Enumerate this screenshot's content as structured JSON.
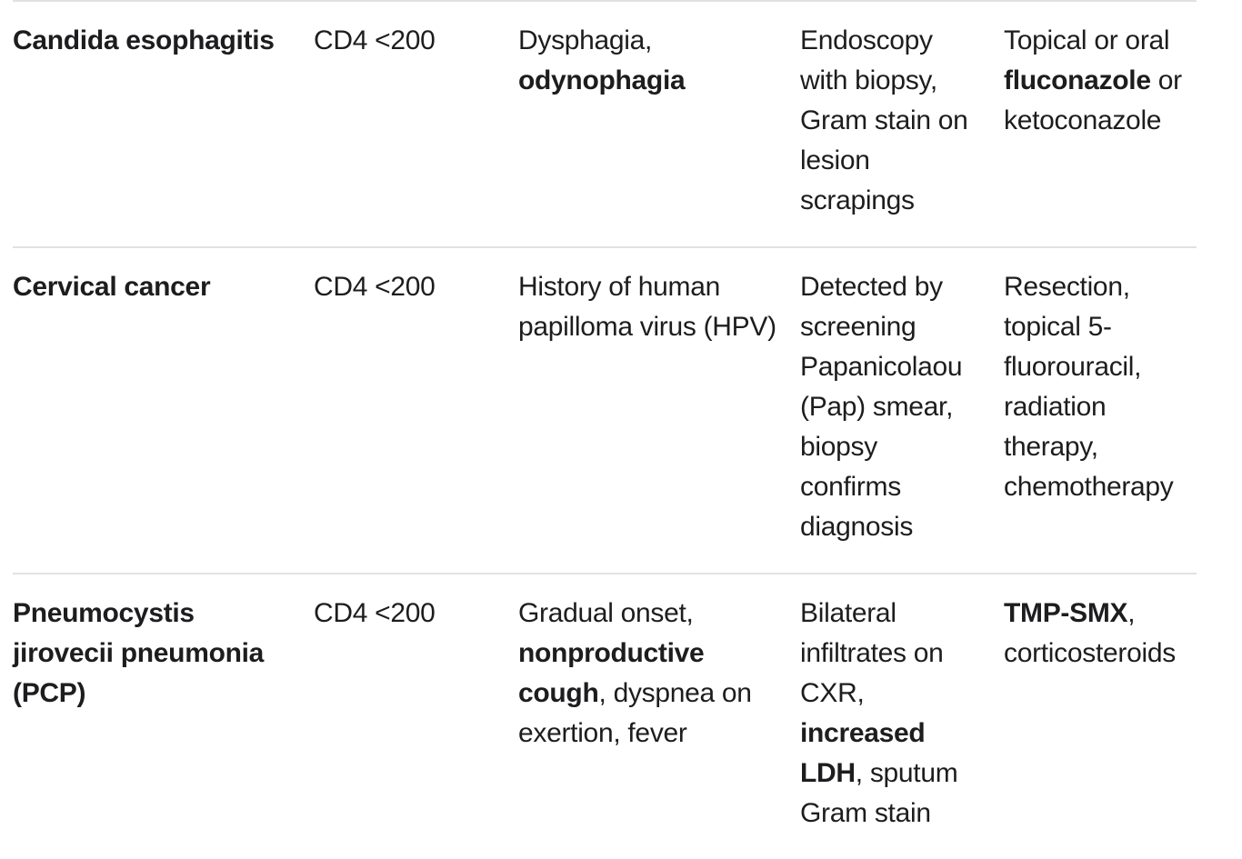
{
  "colors": {
    "text": "#1d1d1f",
    "divider": "#e1e1e5",
    "background": "#ffffff"
  },
  "table": {
    "rows": [
      {
        "cells": [
          [
            {
              "t": "Candida esophagitis",
              "b": true
            }
          ],
          [
            {
              "t": "CD4 <200"
            }
          ],
          [
            {
              "t": "Dysphagia,\n"
            },
            {
              "t": "odynophagia",
              "b": true
            }
          ],
          [
            {
              "t": "Endoscopy\nwith biopsy,\nGram stain on\nlesion\nscrapings"
            }
          ],
          [
            {
              "t": "Topical or oral\n"
            },
            {
              "t": "fluconazole",
              "b": true
            },
            {
              "t": " or\nketoconazole"
            }
          ]
        ]
      },
      {
        "cells": [
          [
            {
              "t": "Cervical cancer",
              "b": true
            }
          ],
          [
            {
              "t": "CD4 <200"
            }
          ],
          [
            {
              "t": "History of human\npapilloma virus (HPV)"
            }
          ],
          [
            {
              "t": "Detected by\nscreening\nPapanicolaou\n(Pap) smear,\nbiopsy\nconfirms\ndiagnosis"
            }
          ],
          [
            {
              "t": "Resection,\ntopical 5-\nfluorouracil,\nradiation\ntherapy,\nchemotherapy"
            }
          ]
        ]
      },
      {
        "cells": [
          [
            {
              "t": "Pneumocystis\njirovecii pneumonia\n(PCP)",
              "b": true
            }
          ],
          [
            {
              "t": "CD4 <200"
            }
          ],
          [
            {
              "t": "Gradual onset,\n"
            },
            {
              "t": "nonproductive\ncough",
              "b": true
            },
            {
              "t": ", dyspnea on\nexertion, fever"
            }
          ],
          [
            {
              "t": "Bilateral\ninfiltrates on\nCXR,\n"
            },
            {
              "t": "increased\nLDH",
              "b": true
            },
            {
              "t": ", sputum\nGram stain"
            }
          ],
          [
            {
              "t": "TMP-SMX",
              "b": true
            },
            {
              "t": ",\ncorticosteroids"
            }
          ]
        ]
      }
    ]
  }
}
